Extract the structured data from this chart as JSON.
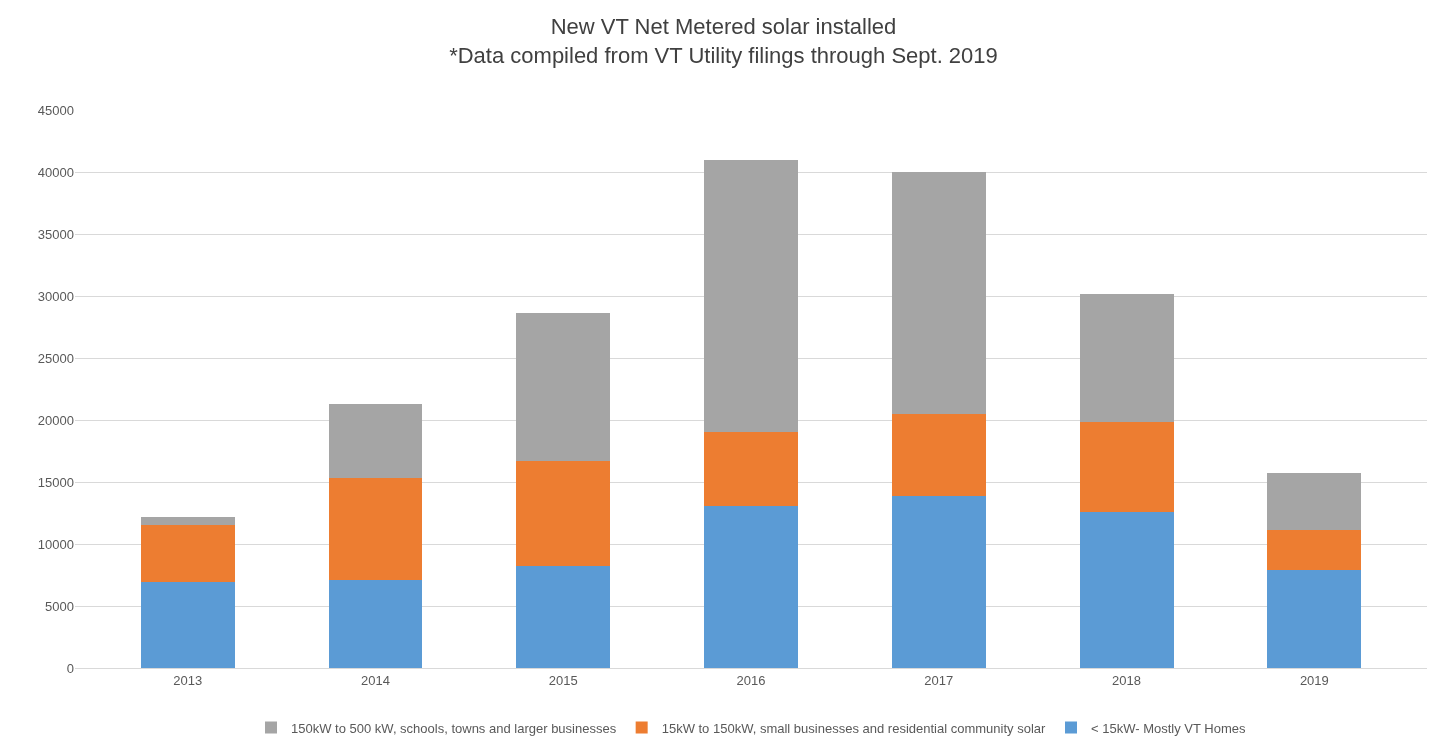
{
  "chart_data": {
    "type": "bar",
    "title": "New VT Net Metered solar installed",
    "subtitle": "*Data compiled from VT Utility filings through Sept. 2019",
    "categories": [
      "2013",
      "2014",
      "2015",
      "2016",
      "2017",
      "2018",
      "2019"
    ],
    "stacked": true,
    "ylim": [
      0,
      45000
    ],
    "yticks": [
      0,
      5000,
      10000,
      15000,
      20000,
      25000,
      30000,
      35000,
      40000,
      45000
    ],
    "grid": "y",
    "legend": "bottom",
    "series": [
      {
        "name": "< 15kW- Mostly VT Homes",
        "color": "#5b9bd5",
        "values": [
          6900,
          7100,
          8200,
          13100,
          13900,
          12600,
          7900
        ]
      },
      {
        "name": "15kW to 150kW, small businesses and residential community solar",
        "color": "#ed7d31",
        "values": [
          4600,
          8200,
          8500,
          5900,
          6600,
          7200,
          3200
        ]
      },
      {
        "name": "150kW to 500 kW, schools, towns and larger businesses",
        "color": "#a5a5a5",
        "values": [
          700,
          6000,
          11900,
          22000,
          19500,
          10400,
          4600
        ]
      }
    ]
  }
}
